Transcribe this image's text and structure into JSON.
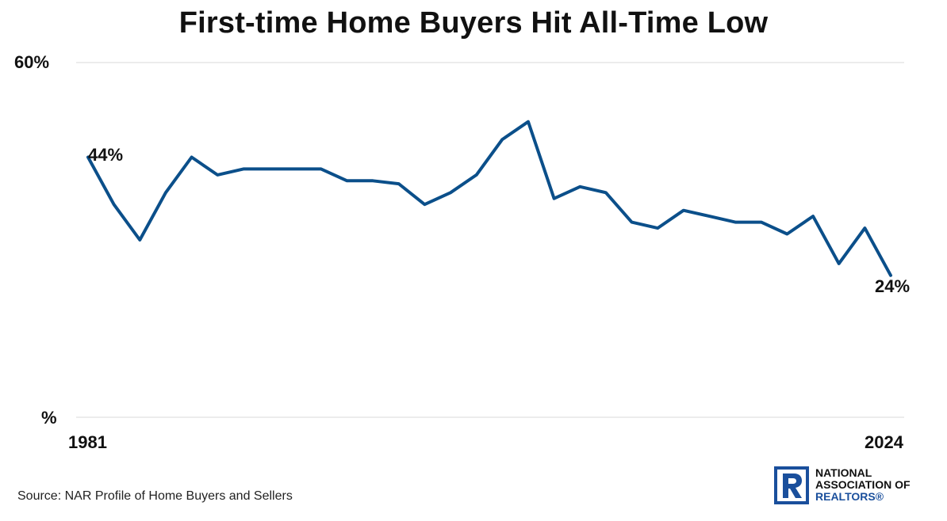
{
  "title": "First-time Home Buyers Hit All-Time Low",
  "source": "Source: NAR Profile of Home Buyers and Sellers",
  "logo": {
    "name": "logo-national-association-of-realtors",
    "line1": "NATIONAL",
    "line2": "ASSOCIATION OF",
    "line3": "REALTORS®",
    "color": "#1a4f9c"
  },
  "chart_data": {
    "type": "line",
    "title": "First-time Home Buyers Hit All-Time Low",
    "xlabel": "",
    "ylabel": "",
    "ylim": [
      0,
      60
    ],
    "y_tick_labels": [
      "60%",
      "%"
    ],
    "x_tick_labels": [
      "1981",
      "2024"
    ],
    "grid": true,
    "line_color": "#0b4f8a",
    "series": [
      {
        "values": [
          44,
          36,
          30,
          38,
          44,
          41,
          42,
          42,
          42,
          42,
          40,
          40,
          39.5,
          36,
          38,
          41,
          47,
          50,
          37,
          39,
          38,
          33,
          32,
          35,
          34,
          33,
          33,
          31,
          34,
          26,
          32,
          24
        ]
      }
    ],
    "annotations": [
      {
        "point": "first",
        "text": "44%"
      },
      {
        "point": "last",
        "text": "24%"
      }
    ]
  }
}
